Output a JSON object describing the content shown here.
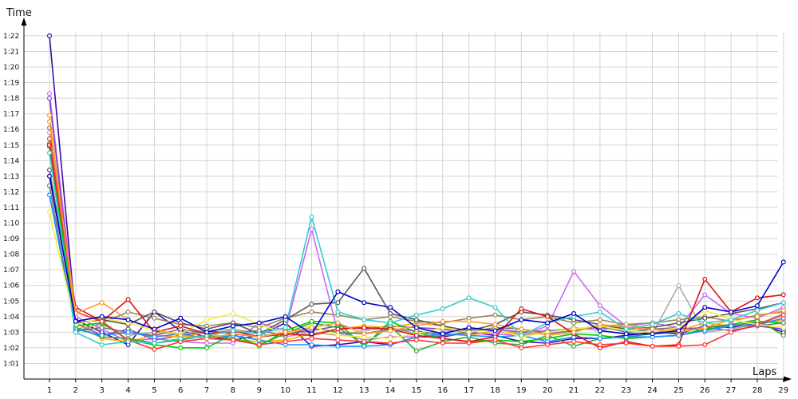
{
  "chart_data": {
    "type": "line",
    "xlabel": "Laps",
    "ylabel": "Time",
    "x": [
      1,
      2,
      3,
      4,
      5,
      6,
      7,
      8,
      9,
      10,
      11,
      12,
      13,
      14,
      15,
      16,
      17,
      18,
      19,
      20,
      21,
      22,
      23,
      24,
      25,
      26,
      27,
      28,
      29
    ],
    "ytick_labels": [
      "1:01",
      "1:02",
      "1:03",
      "1:04",
      "1:05",
      "1:06",
      "1:07",
      "1:08",
      "1:09",
      "1:10",
      "1:11",
      "1:12",
      "1:13",
      "1:14",
      "1:15",
      "1:16",
      "1:17",
      "1:18",
      "1:19",
      "1:20",
      "1:21",
      "1:22"
    ],
    "ylim_seconds": [
      60,
      83
    ],
    "grid": true,
    "legend": "none",
    "series": [
      {
        "color": "#3a0ca3",
        "values": [
          82.0,
          63.8,
          63.0,
          62.2,
          64.3,
          63.1,
          62.7,
          62.5,
          62.8,
          63.6,
          62.1,
          62.2,
          62.4,
          62.2,
          62.7,
          62.7,
          63.0,
          62.8,
          62.4,
          62.3,
          62.6,
          62.6,
          62.8,
          63.0,
          62.9,
          63.4,
          63.3,
          63.6,
          63.0
        ]
      },
      {
        "color": "#cc66ff",
        "values": [
          78.3,
          64.0,
          63.2,
          62.4,
          62.6,
          62.4,
          62.3,
          62.3,
          63.6,
          63.1,
          69.6,
          63.0,
          62.5,
          62.7,
          62.7,
          62.8,
          62.9,
          62.9,
          62.8,
          63.4,
          66.9,
          64.7,
          63.4,
          63.6,
          63.3,
          65.4,
          64.2,
          63.9,
          64.6
        ]
      },
      {
        "color": "#8844cc",
        "values": [
          78.0,
          63.6,
          62.8,
          63.2,
          62.5,
          62.8,
          63.1,
          62.9,
          62.7,
          62.9,
          63.1,
          63.4,
          63.2,
          63.4,
          63.3,
          63.2,
          63.0,
          63.2,
          63.0,
          63.1,
          63.2,
          63.3,
          63.1,
          63.0,
          63.2,
          63.3,
          63.1,
          63.4,
          63.2
        ]
      },
      {
        "color": "#ffaa00",
        "values": [
          76.9,
          63.6,
          62.6,
          62.4,
          62.8,
          62.7,
          63.0,
          62.5,
          62.4,
          62.5,
          62.9,
          63.2,
          63.4,
          63.3,
          63.6,
          63.4,
          62.8,
          63.1,
          62.9,
          63.0,
          63.2,
          63.4,
          63.5,
          63.2,
          63.1,
          63.6,
          63.4,
          63.5,
          63.8
        ]
      },
      {
        "color": "#998855",
        "values": [
          76.1,
          63.0,
          63.6,
          64.3,
          63.9,
          63.5,
          63.4,
          63.6,
          63.3,
          63.9,
          64.3,
          64.1,
          63.8,
          64.0,
          63.7,
          63.6,
          63.9,
          64.1,
          63.8,
          64.0,
          63.6,
          63.8,
          63.5,
          63.6,
          63.8,
          64.0,
          63.7,
          64.1,
          64.3
        ]
      },
      {
        "color": "#aaaaaa",
        "values": [
          75.8,
          63.2,
          63.5,
          62.8,
          63.0,
          62.9,
          63.1,
          63.2,
          62.9,
          62.7,
          63.0,
          62.8,
          63.1,
          63.3,
          62.9,
          63.0,
          63.2,
          63.1,
          62.8,
          63.0,
          63.3,
          63.1,
          63.5,
          62.9,
          66.0,
          63.0,
          63.2,
          63.5,
          64.2
        ]
      },
      {
        "color": "#33aa33",
        "values": [
          75.1,
          63.3,
          62.7,
          62.6,
          62.3,
          62.5,
          62.8,
          62.6,
          62.2,
          62.9,
          63.6,
          63.3,
          62.2,
          63.4,
          61.8,
          62.4,
          62.7,
          62.3,
          62.2,
          62.8,
          62.1,
          62.6,
          62.7,
          62.9,
          63.0,
          63.3,
          63.5,
          63.8,
          62.8
        ]
      },
      {
        "color": "#00cc00",
        "values": [
          74.9,
          63.4,
          63.6,
          62.5,
          62.2,
          62.0,
          62.0,
          62.9,
          62.1,
          63.1,
          63.7,
          63.6,
          62.1,
          63.7,
          63.0,
          62.6,
          62.4,
          62.5,
          62.4,
          62.6,
          62.9,
          62.8,
          62.6,
          62.7,
          62.8,
          63.2,
          63.4,
          63.7,
          63.6
        ]
      },
      {
        "color": "#555555",
        "values": [
          73.4,
          63.6,
          63.8,
          63.5,
          64.3,
          63.6,
          63.2,
          63.6,
          62.9,
          63.8,
          64.8,
          64.9,
          67.1,
          64.2,
          63.8,
          63.4,
          63.1,
          63.5,
          64.3,
          64.1,
          63.8,
          63.5,
          63.2,
          63.3,
          63.6,
          63.9,
          64.2,
          64.5,
          64.9
        ]
      },
      {
        "color": "#777777",
        "values": [
          72.4,
          63.1,
          63.3,
          63.0,
          62.8,
          63.2,
          62.9,
          63.0,
          63.1,
          62.8,
          63.3,
          63.0,
          62.9,
          63.2,
          63.1,
          62.8,
          63.0,
          63.3,
          63.2,
          62.9,
          63.1,
          63.4,
          63.0,
          63.2,
          63.3,
          63.1,
          63.5,
          63.4,
          63.6
        ]
      },
      {
        "color": "#1e90ff",
        "values": [
          71.8,
          63.2,
          62.8,
          63.0,
          62.7,
          62.9,
          62.6,
          62.8,
          62.5,
          62.2,
          62.2,
          62.1,
          62.1,
          62.2,
          62.7,
          62.9,
          62.8,
          62.7,
          62.8,
          62.4,
          62.7,
          62.6,
          62.7,
          62.7,
          62.8,
          63.1,
          63.4,
          63.5,
          63.9
        ]
      },
      {
        "color": "#eeee44",
        "values": [
          70.7,
          63.5,
          63.9,
          63.6,
          63.1,
          62.9,
          63.8,
          64.2,
          63.5,
          62.9,
          63.4,
          62.8,
          62.7,
          62.6,
          62.9,
          63.3,
          63.0,
          63.2,
          62.7,
          63.0,
          63.2,
          63.4,
          63.1,
          63.0,
          63.3,
          64.4,
          63.8,
          63.5,
          63.3
        ]
      },
      {
        "color": "#dd1111",
        "values": [
          75.0,
          64.6,
          63.7,
          65.1,
          63.0,
          63.4,
          62.9,
          63.1,
          62.7,
          62.9,
          62.8,
          63.2,
          63.3,
          63.2,
          62.8,
          62.6,
          62.4,
          62.7,
          64.5,
          64.0,
          62.9,
          62.0,
          62.4,
          62.1,
          62.2,
          66.4,
          64.3,
          65.2,
          65.4
        ]
      },
      {
        "color": "#ff3333",
        "values": [
          75.4,
          64.3,
          63.7,
          62.5,
          61.9,
          62.4,
          62.6,
          62.5,
          62.2,
          62.4,
          62.6,
          62.5,
          62.4,
          62.3,
          62.5,
          62.3,
          62.3,
          62.5,
          62.0,
          62.2,
          62.4,
          62.2,
          62.3,
          62.1,
          62.1,
          62.2,
          63.0,
          63.5,
          64.1
        ]
      },
      {
        "color": "#ff9933",
        "values": [
          76.5,
          64.2,
          64.9,
          63.8,
          63.2,
          62.8,
          62.6,
          62.9,
          62.7,
          63.0,
          63.3,
          63.6,
          62.9,
          63.1,
          63.4,
          63.7,
          63.7,
          63.5,
          63.2,
          62.8,
          63.0,
          63.5,
          63.3,
          63.2,
          63.0,
          63.3,
          63.8,
          64.0,
          64.4
        ]
      },
      {
        "color": "#33cccc",
        "values": [
          74.5,
          63.0,
          62.2,
          62.4,
          62.3,
          62.6,
          62.8,
          63.1,
          62.9,
          63.3,
          70.4,
          64.3,
          63.8,
          63.6,
          64.1,
          64.5,
          65.2,
          64.6,
          62.8,
          63.6,
          64.0,
          64.3,
          63.2,
          63.5,
          64.2,
          63.6,
          63.8,
          64.4,
          64.9
        ]
      },
      {
        "color": "#0000cc",
        "values": [
          73.0,
          63.7,
          64.0,
          63.8,
          63.2,
          63.9,
          63.0,
          63.4,
          63.6,
          64.0,
          62.9,
          65.6,
          64.9,
          64.6,
          63.3,
          62.9,
          63.3,
          63.1,
          63.8,
          63.6,
          64.2,
          63.1,
          62.9,
          62.9,
          63.1,
          64.6,
          64.3,
          64.7,
          67.5
        ]
      }
    ]
  }
}
